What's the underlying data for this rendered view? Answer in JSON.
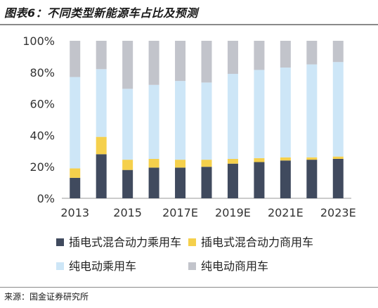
{
  "figure_title": "图表6：不同类型新能源车占比及预测",
  "source": "来源：国金证券研究所",
  "colors": {
    "phev_passenger": "#404a5e",
    "phev_commercial": "#f5d04c",
    "bev_passenger": "#cde6f7",
    "bev_commercial": "#c2c4cb"
  },
  "chart_data": {
    "type": "bar",
    "stacked": true,
    "title": "",
    "xlabel": "",
    "ylabel": "",
    "ylim": [
      0,
      100
    ],
    "yticks": [
      "0%",
      "20%",
      "40%",
      "60%",
      "80%",
      "100%"
    ],
    "categories": [
      "2013",
      "2014",
      "2015",
      "2016",
      "2017E",
      "2018E",
      "2019E",
      "2020E",
      "2021E",
      "2022E",
      "2023E"
    ],
    "xtick_labels": [
      "2013",
      "",
      "2015",
      "",
      "2017E",
      "",
      "2019E",
      "",
      "2021E",
      "",
      "2023E"
    ],
    "legend_position": "bottom",
    "series": [
      {
        "name": "插电式混合动力乘用车",
        "color_key": "phev_passenger",
        "values": [
          13,
          28,
          18,
          19.5,
          19.5,
          20,
          22,
          23,
          24,
          24.5,
          25
        ]
      },
      {
        "name": "插电式混合动力商用车",
        "color_key": "phev_commercial",
        "values": [
          6,
          11,
          6.5,
          5.5,
          5,
          4.5,
          3,
          2.5,
          2,
          1.5,
          1.5
        ]
      },
      {
        "name": "纯电动乘用车",
        "color_key": "bev_passenger",
        "values": [
          58,
          43,
          45,
          47,
          50,
          49,
          54,
          56,
          57,
          59,
          60
        ]
      },
      {
        "name": "纯电动商用车",
        "color_key": "bev_commercial",
        "values": [
          23,
          18,
          30.5,
          28,
          25.5,
          26.5,
          21,
          18.5,
          17,
          15,
          13.5
        ]
      }
    ]
  }
}
